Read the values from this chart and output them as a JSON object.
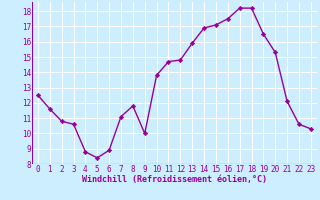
{
  "x": [
    0,
    1,
    2,
    3,
    4,
    5,
    6,
    7,
    8,
    9,
    10,
    11,
    12,
    13,
    14,
    15,
    16,
    17,
    18,
    19,
    20,
    21,
    22,
    23
  ],
  "y": [
    12.5,
    11.6,
    10.8,
    10.6,
    8.8,
    8.4,
    8.9,
    11.1,
    11.8,
    10.0,
    13.8,
    14.7,
    14.8,
    15.9,
    16.9,
    17.1,
    17.5,
    18.2,
    18.2,
    16.5,
    15.3,
    12.1,
    10.6,
    10.3
  ],
  "line_color": "#990099",
  "marker": "D",
  "markersize": 2.2,
  "linewidth": 1.0,
  "bg_color": "#cceeff",
  "grid_color": "#ffffff",
  "xlabel": "Windchill (Refroidissement éolien,°C)",
  "xlabel_color": "#990099",
  "xlabel_fontsize": 6.0,
  "tick_color": "#990099",
  "tick_fontsize": 5.5,
  "xlim": [
    -0.5,
    23.5
  ],
  "ylim": [
    8,
    18.6
  ],
  "yticks": [
    8,
    9,
    10,
    11,
    12,
    13,
    14,
    15,
    16,
    17,
    18
  ],
  "xticks": [
    0,
    1,
    2,
    3,
    4,
    5,
    6,
    7,
    8,
    9,
    10,
    11,
    12,
    13,
    14,
    15,
    16,
    17,
    18,
    19,
    20,
    21,
    22,
    23
  ]
}
